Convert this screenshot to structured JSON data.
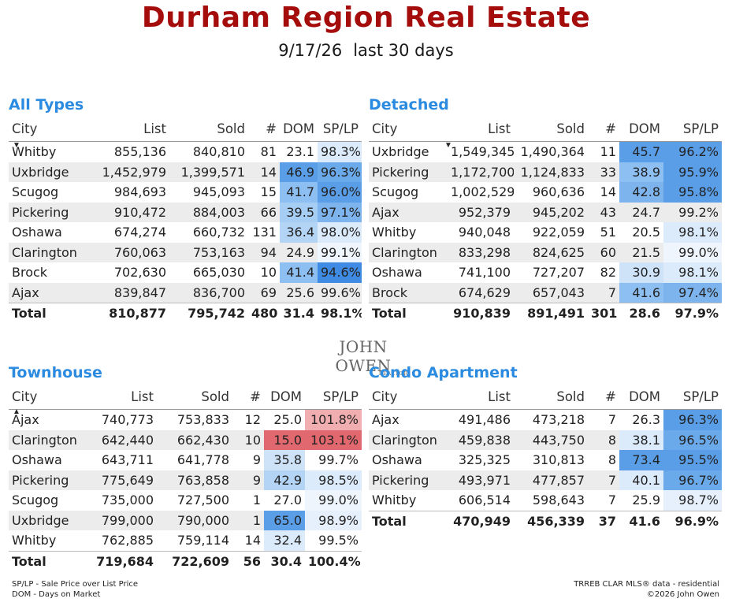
{
  "header": {
    "title": "Durham Region Real Estate",
    "date": "9/17/26",
    "period": "last 30 days"
  },
  "columns": [
    "City",
    "List",
    "Sold",
    "#",
    "DOM",
    "SP/LP"
  ],
  "colors": {
    "title": "#a50d0d",
    "panel_title": "#2b8be0",
    "dom_high": "#5a9ee8",
    "dom_mid": "#a6cdf4",
    "dom_low": "#dcebfb",
    "splp_red": "#e0686e",
    "splp_pink": "#f1aeb0",
    "row_alt": "#ececec"
  },
  "panels": {
    "all_types": {
      "title": "All Types",
      "rows": [
        {
          "city": "Whitby",
          "list": "855,136",
          "sold": "840,810",
          "n": "81",
          "dom": "23.1",
          "splp": "98.3%",
          "dom_bg": "",
          "splp_bg": "#dcebfb"
        },
        {
          "city": "Uxbridge",
          "list": "1,452,979",
          "sold": "1,399,571",
          "n": "14",
          "dom": "46.9",
          "splp": "96.3%",
          "dom_bg": "#5a9ee8",
          "splp_bg": "#6aa9ea"
        },
        {
          "city": "Scugog",
          "list": "984,693",
          "sold": "945,093",
          "n": "15",
          "dom": "41.7",
          "splp": "96.0%",
          "dom_bg": "#8ebff2",
          "splp_bg": "#5a9ee8"
        },
        {
          "city": "Pickering",
          "list": "910,472",
          "sold": "884,003",
          "n": "66",
          "dom": "39.5",
          "splp": "97.1%",
          "dom_bg": "#a6cdf4",
          "splp_bg": "#7db4ee"
        },
        {
          "city": "Oshawa",
          "list": "674,274",
          "sold": "660,732",
          "n": "131",
          "dom": "36.4",
          "splp": "98.0%",
          "dom_bg": "#b4d4f5",
          "splp_bg": "#dcebfb"
        },
        {
          "city": "Clarington",
          "list": "760,063",
          "sold": "753,163",
          "n": "94",
          "dom": "24.9",
          "splp": "99.1%",
          "dom_bg": "",
          "splp_bg": "#eef5fd"
        },
        {
          "city": "Brock",
          "list": "702,630",
          "sold": "665,030",
          "n": "10",
          "dom": "41.4",
          "splp": "94.6%",
          "dom_bg": "#8ebff2",
          "splp_bg": "#3f8be3"
        },
        {
          "city": "Ajax",
          "list": "839,847",
          "sold": "836,700",
          "n": "69",
          "dom": "25.6",
          "splp": "99.6%",
          "dom_bg": "",
          "splp_bg": ""
        }
      ],
      "total": {
        "label": "Total",
        "list": "810,877",
        "sold": "795,742",
        "n": "480",
        "dom": "31.4",
        "splp": "98.1%"
      }
    },
    "detached": {
      "title": "Detached",
      "rows": [
        {
          "city": "Uxbridge",
          "list": "1,549,345",
          "sold": "1,490,364",
          "n": "11",
          "dom": "45.7",
          "splp": "96.2%",
          "dom_bg": "#5a9ee8",
          "splp_bg": "#5a9ee8"
        },
        {
          "city": "Pickering",
          "list": "1,172,700",
          "sold": "1,124,833",
          "n": "33",
          "dom": "38.9",
          "splp": "95.9%",
          "dom_bg": "#8ebff2",
          "splp_bg": "#5a9ee8"
        },
        {
          "city": "Scugog",
          "list": "1,002,529",
          "sold": "960,636",
          "n": "14",
          "dom": "42.8",
          "splp": "95.8%",
          "dom_bg": "#7db4ee",
          "splp_bg": "#5a9ee8"
        },
        {
          "city": "Ajax",
          "list": "952,379",
          "sold": "945,202",
          "n": "43",
          "dom": "24.7",
          "splp": "99.2%",
          "dom_bg": "",
          "splp_bg": ""
        },
        {
          "city": "Whitby",
          "list": "940,048",
          "sold": "922,059",
          "n": "51",
          "dom": "20.5",
          "splp": "98.1%",
          "dom_bg": "",
          "splp_bg": "#dcebfb"
        },
        {
          "city": "Clarington",
          "list": "833,298",
          "sold": "824,625",
          "n": "60",
          "dom": "21.5",
          "splp": "99.0%",
          "dom_bg": "",
          "splp_bg": "#eef5fd"
        },
        {
          "city": "Oshawa",
          "list": "741,100",
          "sold": "727,207",
          "n": "82",
          "dom": "30.9",
          "splp": "98.1%",
          "dom_bg": "#cfe3f8",
          "splp_bg": "#dcebfb"
        },
        {
          "city": "Brock",
          "list": "674,629",
          "sold": "657,043",
          "n": "7",
          "dom": "41.6",
          "splp": "97.4%",
          "dom_bg": "#8ebff2",
          "splp_bg": "#7db4ee"
        }
      ],
      "total": {
        "label": "Total",
        "list": "910,839",
        "sold": "891,491",
        "n": "301",
        "dom": "28.6",
        "splp": "97.9%"
      }
    },
    "townhouse": {
      "title": "Townhouse",
      "rows": [
        {
          "city": "Ajax",
          "list": "740,773",
          "sold": "753,833",
          "n": "12",
          "dom": "25.0",
          "splp": "101.8%",
          "dom_bg": "",
          "splp_bg": "#f1aeb0"
        },
        {
          "city": "Clarington",
          "list": "642,440",
          "sold": "662,430",
          "n": "10",
          "dom": "15.0",
          "splp": "103.1%",
          "dom_bg": "#e0686e",
          "splp_bg": "#e0686e"
        },
        {
          "city": "Oshawa",
          "list": "643,711",
          "sold": "641,778",
          "n": "9",
          "dom": "35.8",
          "splp": "99.7%",
          "dom_bg": "#cfe3f8",
          "splp_bg": ""
        },
        {
          "city": "Pickering",
          "list": "775,649",
          "sold": "763,858",
          "n": "9",
          "dom": "42.9",
          "splp": "98.5%",
          "dom_bg": "#b4d4f5",
          "splp_bg": "#dcebfb"
        },
        {
          "city": "Scugog",
          "list": "735,000",
          "sold": "727,500",
          "n": "1",
          "dom": "27.0",
          "splp": "99.0%",
          "dom_bg": "",
          "splp_bg": "#eef5fd"
        },
        {
          "city": "Uxbridge",
          "list": "799,000",
          "sold": "790,000",
          "n": "1",
          "dom": "65.0",
          "splp": "98.9%",
          "dom_bg": "#5a9ee8",
          "splp_bg": "#e6f0fc"
        },
        {
          "city": "Whitby",
          "list": "762,885",
          "sold": "759,114",
          "n": "14",
          "dom": "32.4",
          "splp": "99.5%",
          "dom_bg": "#dcebfb",
          "splp_bg": ""
        }
      ],
      "total": {
        "label": "Total",
        "list": "719,684",
        "sold": "722,609",
        "n": "56",
        "dom": "30.4",
        "splp": "100.4%"
      }
    },
    "condo": {
      "title": "Condo Apartment",
      "rows": [
        {
          "city": "Ajax",
          "list": "491,486",
          "sold": "473,218",
          "n": "7",
          "dom": "26.3",
          "splp": "96.3%",
          "dom_bg": "",
          "splp_bg": "#5a9ee8"
        },
        {
          "city": "Clarington",
          "list": "459,838",
          "sold": "443,750",
          "n": "8",
          "dom": "38.1",
          "splp": "96.5%",
          "dom_bg": "#dcebfb",
          "splp_bg": "#6aa9ea"
        },
        {
          "city": "Oshawa",
          "list": "325,325",
          "sold": "310,813",
          "n": "8",
          "dom": "73.4",
          "splp": "95.5%",
          "dom_bg": "#5a9ee8",
          "splp_bg": "#5a9ee8"
        },
        {
          "city": "Pickering",
          "list": "493,971",
          "sold": "477,857",
          "n": "7",
          "dom": "40.1",
          "splp": "96.7%",
          "dom_bg": "#dcebfb",
          "splp_bg": "#6aa9ea"
        },
        {
          "city": "Whitby",
          "list": "606,514",
          "sold": "598,643",
          "n": "7",
          "dom": "25.9",
          "splp": "98.7%",
          "dom_bg": "",
          "splp_bg": "#e6f0fc"
        }
      ],
      "total": {
        "label": "Total",
        "list": "470,949",
        "sold": "456,339",
        "n": "37",
        "dom": "41.6",
        "splp": "96.9%"
      }
    }
  },
  "logo": {
    "name": "JOHN OWEN",
    "sub": "REALTOR"
  },
  "footer": {
    "left_line1": "SP/LP - Sale Price over List Price",
    "left_line2": "DOM - Days on Market",
    "right_line1": "TRREB CLAR MLS® data - residential",
    "right_line2": "©2026 John Owen"
  }
}
